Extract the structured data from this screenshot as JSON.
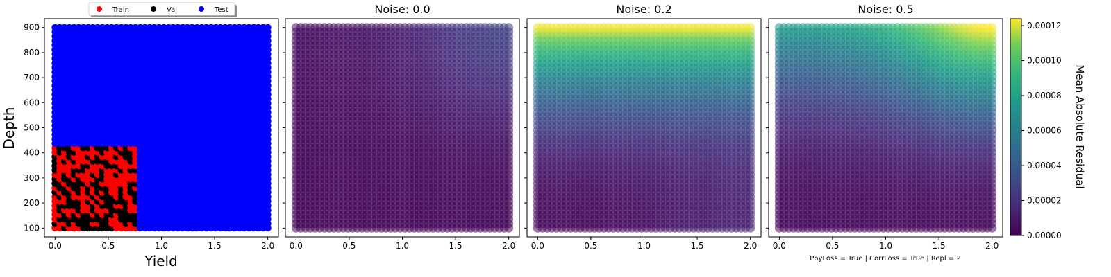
{
  "figure": {
    "footnote": "PhyLoss = True | CorrLoss = True | Repl = 2"
  },
  "chart_data": [
    {
      "type": "scatter",
      "title": "",
      "xlabel": "Yield",
      "ylabel": "Depth",
      "xlim": [
        -0.1,
        2.1
      ],
      "ylim": [
        65,
        935
      ],
      "xticks": [
        "0.0",
        "0.5",
        "1.0",
        "1.5",
        "2.0"
      ],
      "yticks": [
        "100",
        "200",
        "300",
        "400",
        "500",
        "600",
        "700",
        "800",
        "900"
      ],
      "xtick_values": [
        0,
        0.5,
        1,
        1.5,
        2
      ],
      "ytick_values": [
        100,
        200,
        300,
        400,
        500,
        600,
        700,
        800,
        900
      ],
      "legend": {
        "placement": "top-center-outside",
        "entries": [
          {
            "label": "Train",
            "color": "#ff0000"
          },
          {
            "label": "Val",
            "color": "#000000"
          },
          {
            "label": "Test",
            "color": "#0000ff"
          }
        ]
      },
      "regions": [
        {
          "name": "Test",
          "color": "#0000ff",
          "x_range": [
            0,
            2
          ],
          "y_range": [
            100,
            900
          ]
        },
        {
          "name": "Train",
          "color": "#ff0000",
          "x_range": [
            0,
            0.78
          ],
          "y_range": [
            100,
            425
          ]
        }
      ],
      "val_fraction_within_train": 0.5
    },
    {
      "type": "heatmap",
      "title": "Noise: 0.0",
      "xlim": [
        -0.1,
        2.1
      ],
      "ylim": [
        65,
        935
      ],
      "xticks": [
        "0.0",
        "0.5",
        "1.0",
        "1.5",
        "2.0"
      ],
      "xtick_values": [
        0,
        0.5,
        1,
        1.5,
        2
      ],
      "grid": {
        "x_range": [
          0,
          2
        ],
        "y_range": [
          100,
          900
        ]
      },
      "residual_model": {
        "base": 1e-06,
        "top_peak": 4e-06,
        "corner_peak": 2.2e-05,
        "corner_center": [
          2.0,
          900
        ]
      }
    },
    {
      "type": "heatmap",
      "title": "Noise: 0.2",
      "xlim": [
        -0.1,
        2.1
      ],
      "ylim": [
        65,
        935
      ],
      "xticks": [
        "0.0",
        "0.5",
        "1.0",
        "1.5",
        "2.0"
      ],
      "xtick_values": [
        0,
        0.5,
        1,
        1.5,
        2
      ],
      "grid": {
        "x_range": [
          0,
          2
        ],
        "y_range": [
          100,
          900
        ]
      },
      "residual_model": {
        "base": 2e-06,
        "top_peak": 0.00012,
        "corner_peak": 1e-05,
        "corner_center": [
          2.0,
          100
        ]
      }
    },
    {
      "type": "heatmap",
      "title": "Noise: 0.5",
      "xlim": [
        -0.1,
        2.1
      ],
      "ylim": [
        65,
        935
      ],
      "xticks": [
        "0.0",
        "0.5",
        "1.0",
        "1.5",
        "2.0"
      ],
      "xtick_values": [
        0,
        0.5,
        1,
        1.5,
        2
      ],
      "grid": {
        "x_range": [
          0,
          2
        ],
        "y_range": [
          100,
          900
        ]
      },
      "residual_model": {
        "base": 2e-06,
        "top_peak": 7.2e-05,
        "corner_peak": 5e-05,
        "corner_center": [
          2.0,
          900
        ]
      }
    }
  ],
  "colorbar": {
    "label": "Mean Absolute Residual",
    "colormap": "viridis",
    "range": [
      0,
      0.000124
    ],
    "ticks": [
      "0.00000",
      "0.00002",
      "0.00004",
      "0.00006",
      "0.00008",
      "0.00010",
      "0.00012"
    ],
    "tick_values": [
      0,
      2e-05,
      4e-05,
      6e-05,
      8e-05,
      0.0001,
      0.00012
    ]
  }
}
